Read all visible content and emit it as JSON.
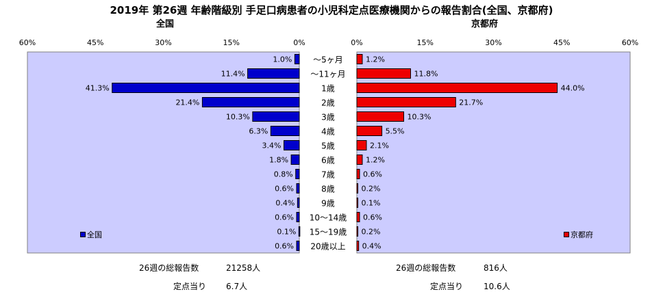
{
  "title": "2019年 第26週 年齢階級別 手足口病患者の小児科定点医療機関からの報告割合(全国、京都府)",
  "colors": {
    "national": "#0000cc",
    "kyoto": "#ee0000",
    "plot_bg": "#ccccff"
  },
  "chart_data": [
    {
      "type": "bar",
      "orientation": "horizontal",
      "title": "全国",
      "categories": [
        "～5ヶ月",
        "～11ヶ月",
        "1歳",
        "2歳",
        "3歳",
        "4歳",
        "5歳",
        "6歳",
        "7歳",
        "8歳",
        "9歳",
        "10～14歳",
        "15～19歳",
        "20歳以上"
      ],
      "series": [
        {
          "name": "全国",
          "values": [
            1.0,
            11.4,
            41.3,
            21.4,
            10.3,
            6.3,
            3.4,
            1.8,
            0.8,
            0.6,
            0.4,
            0.6,
            0.1,
            0.6
          ]
        }
      ],
      "data_labels": [
        "1.0%",
        "11.4%",
        "41.3%",
        "21.4%",
        "10.3%",
        "6.3%",
        "3.4%",
        "1.8%",
        "0.8%",
        "0.6%",
        "0.4%",
        "0.6%",
        "0.1%",
        "0.6%"
      ],
      "x_ticks": [
        "60%",
        "45%",
        "30%",
        "15%",
        "0%"
      ],
      "xlim": [
        0,
        60
      ],
      "x_reversed": true,
      "legend": "bottom-left"
    },
    {
      "type": "bar",
      "orientation": "horizontal",
      "title": "京都府",
      "categories": [
        "～5ヶ月",
        "～11ヶ月",
        "1歳",
        "2歳",
        "3歳",
        "4歳",
        "5歳",
        "6歳",
        "7歳",
        "8歳",
        "9歳",
        "10～14歳",
        "15～19歳",
        "20歳以上"
      ],
      "series": [
        {
          "name": "京都府",
          "values": [
            1.2,
            11.8,
            44.0,
            21.7,
            10.3,
            5.5,
            2.1,
            1.2,
            0.6,
            0.2,
            0.1,
            0.6,
            0.2,
            0.4
          ]
        }
      ],
      "data_labels": [
        "1.2%",
        "11.8%",
        "44.0%",
        "21.7%",
        "10.3%",
        "5.5%",
        "2.1%",
        "1.2%",
        "0.6%",
        "0.2%",
        "0.1%",
        "0.6%",
        "0.2%",
        "0.4%"
      ],
      "x_ticks": [
        "0%",
        "15%",
        "30%",
        "45%",
        "60%"
      ],
      "xlim": [
        0,
        60
      ],
      "x_reversed": false,
      "legend": "bottom-right"
    }
  ],
  "footer": {
    "national": {
      "total_label": "26週の総報告数",
      "total_value": "21258人",
      "per_label": "定点当り",
      "per_value": "6.7人"
    },
    "kyoto": {
      "total_label": "26週の総報告数",
      "total_value": "816人",
      "per_label": "定点当り",
      "per_value": "10.6人"
    }
  }
}
